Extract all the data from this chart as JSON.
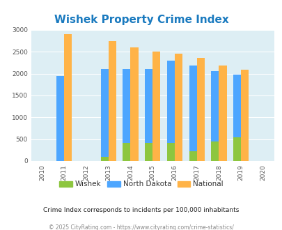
{
  "title": "Wishek Property Crime Index",
  "all_years": [
    2010,
    2011,
    2012,
    2013,
    2014,
    2015,
    2016,
    2017,
    2018,
    2019,
    2020
  ],
  "data_years": [
    2011,
    2013,
    2014,
    2015,
    2016,
    2017,
    2018,
    2019
  ],
  "wishek": [
    0,
    100,
    420,
    420,
    415,
    230,
    440,
    550
  ],
  "north_dakota": [
    1950,
    2100,
    2100,
    2110,
    2290,
    2180,
    2050,
    1975
  ],
  "national": [
    2900,
    2750,
    2600,
    2500,
    2460,
    2360,
    2190,
    2090
  ],
  "color_wishek": "#8dc63f",
  "color_nd": "#4da6ff",
  "color_nat": "#ffb347",
  "bg_color": "#ddeef4",
  "ylim": [
    0,
    3000
  ],
  "yticks": [
    0,
    500,
    1000,
    1500,
    2000,
    2500,
    3000
  ],
  "title_color": "#1a7abf",
  "title_fontsize": 11,
  "subtitle": "Crime Index corresponds to incidents per 100,000 inhabitants",
  "footer": "© 2025 CityRating.com - https://www.cityrating.com/crime-statistics/",
  "legend_labels": [
    "Wishek",
    "North Dakota",
    "National"
  ],
  "bar_width": 0.35
}
